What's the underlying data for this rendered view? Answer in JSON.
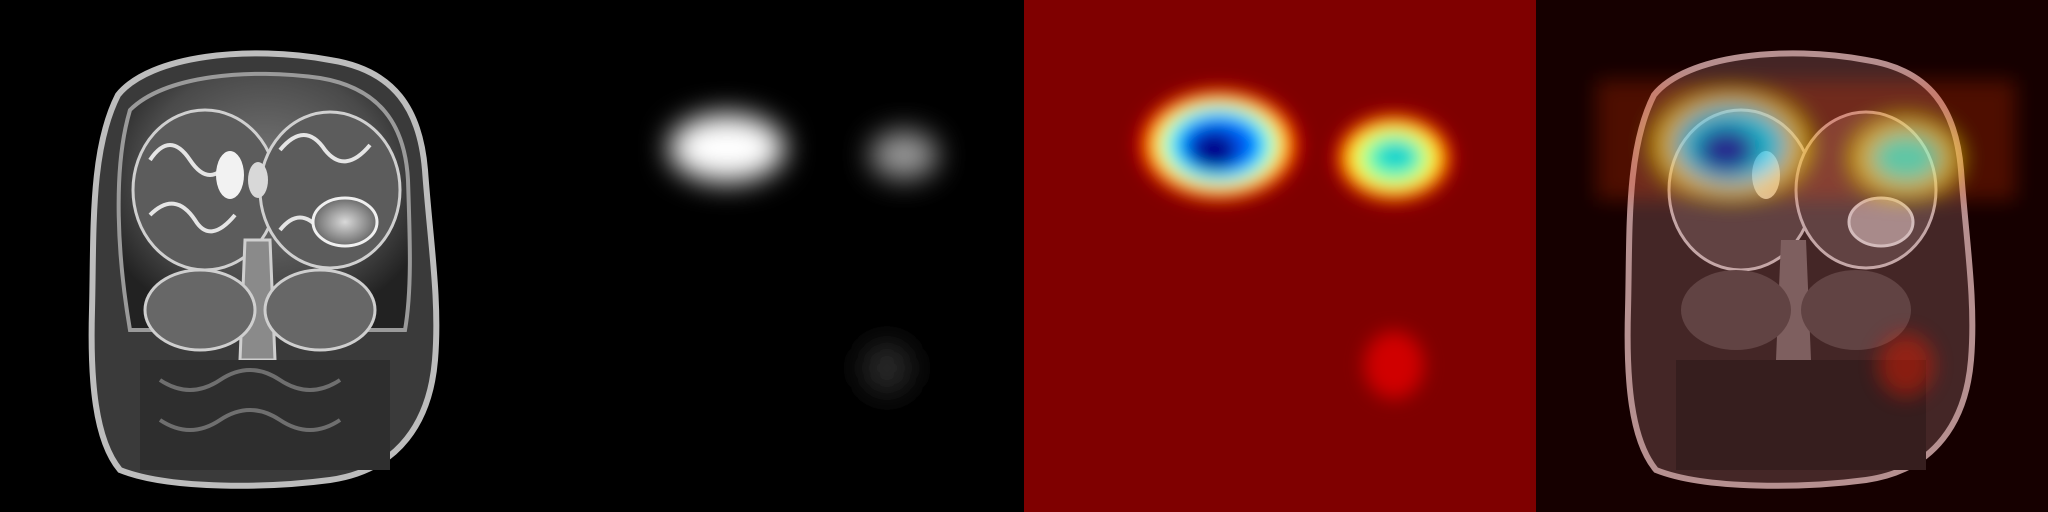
{
  "figure": {
    "panels": [
      {
        "id": "mri",
        "kind": "coronal-mri-slice",
        "background": "#000000"
      },
      {
        "id": "saliency-grayscale",
        "kind": "grayscale-heatmap",
        "background": "#000000"
      },
      {
        "id": "saliency-jet",
        "kind": "jet-colormap-heatmap",
        "background": "#7f0000"
      },
      {
        "id": "overlay",
        "kind": "heatmap-overlay-on-mri",
        "background": "#160000"
      }
    ],
    "colormap": {
      "name": "jet",
      "low": "#7f0000",
      "mid_low": "#ff0000",
      "mid": "#ffff00",
      "mid_high": "#00ffff",
      "high": "#00008b"
    }
  }
}
